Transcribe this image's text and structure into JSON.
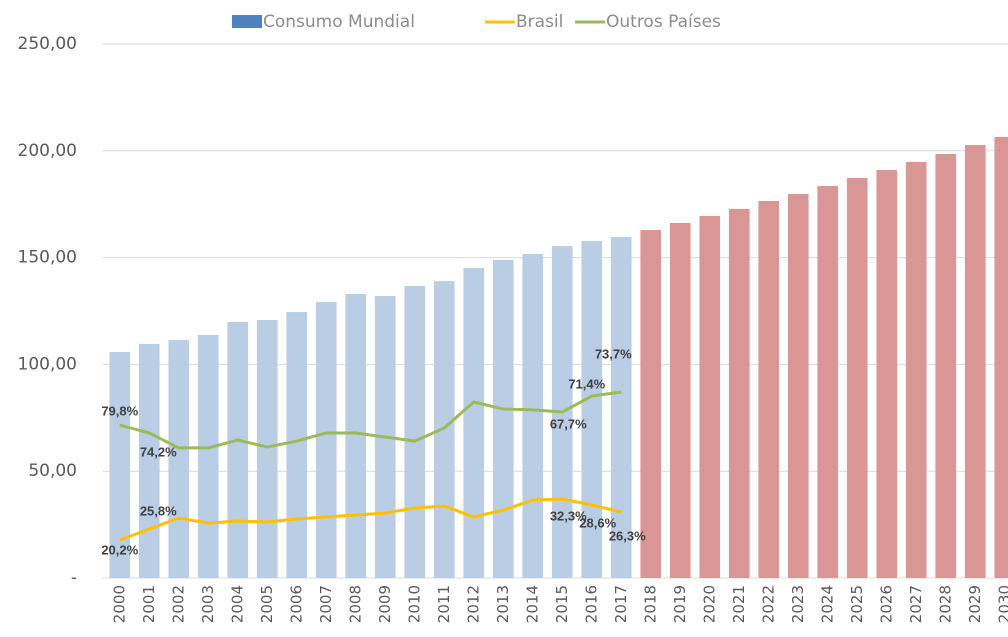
{
  "chart_data": {
    "type": "bar",
    "categories": [
      "2000",
      "2001",
      "2002",
      "2003",
      "2004",
      "2005",
      "2006",
      "2007",
      "2008",
      "2009",
      "2010",
      "2011",
      "2012",
      "2013",
      "2014",
      "2015",
      "2016",
      "2017",
      "2018",
      "2019",
      "2020",
      "2021",
      "2022",
      "2023",
      "2024",
      "2025",
      "2026",
      "2027",
      "2028",
      "2029",
      "2030"
    ],
    "series": [
      {
        "name": "Consumo Mundial",
        "type": "bar",
        "color": "#4f81bd",
        "colors": [
          "#b9cde5",
          "#b9cde5",
          "#b9cde5",
          "#b9cde5",
          "#b9cde5",
          "#b9cde5",
          "#b9cde5",
          "#b9cde5",
          "#b9cde5",
          "#b9cde5",
          "#b9cde5",
          "#b9cde5",
          "#b9cde5",
          "#b9cde5",
          "#b9cde5",
          "#b9cde5",
          "#b9cde5",
          "#b9cde5",
          "#d99694",
          "#d99694",
          "#d99694",
          "#d99694",
          "#d99694",
          "#d99694",
          "#d99694",
          "#d99694",
          "#d99694",
          "#d99694",
          "#d99694",
          "#d99694",
          "#d99694"
        ],
        "values": [
          105.8,
          109.6,
          111.4,
          113.8,
          119.9,
          120.8,
          124.5,
          129.2,
          133.0,
          132.0,
          136.7,
          139.0,
          145.1,
          148.9,
          151.7,
          155.4,
          157.8,
          159.6,
          162.9,
          166.2,
          169.5,
          172.8,
          176.5,
          179.8,
          183.5,
          187.3,
          191.0,
          194.8,
          198.5,
          202.7,
          206.5
        ]
      },
      {
        "name": "Brasil",
        "type": "line",
        "color": "#ffc000",
        "values": [
          17.8,
          22.9,
          28.1,
          25.7,
          26.7,
          26.2,
          27.6,
          28.6,
          29.5,
          30.4,
          32.8,
          33.7,
          28.6,
          31.8,
          36.5,
          37.0,
          34.2,
          30.9,
          null,
          null,
          null,
          null,
          null,
          null,
          null,
          null,
          null,
          null,
          null,
          null,
          null
        ]
      },
      {
        "name": "Outros Países",
        "type": "line",
        "color": "#9bbb59",
        "values": [
          71.6,
          67.9,
          60.9,
          60.9,
          64.6,
          61.3,
          64.1,
          67.9,
          67.9,
          66.0,
          64.1,
          70.2,
          82.4,
          79.1,
          78.7,
          77.7,
          85.2,
          87.1,
          null,
          null,
          null,
          null,
          null,
          null,
          null,
          null,
          null,
          null,
          null,
          null,
          null
        ]
      }
    ],
    "annotations": [
      {
        "text": "79,8%",
        "series": "Outros Países",
        "category": "2000"
      },
      {
        "text": "74,2%",
        "series": "Outros Países",
        "category": "2001"
      },
      {
        "text": "73,7%",
        "series": "Outros Países",
        "category": "2017"
      },
      {
        "text": "71,4%",
        "series": "Outros Países",
        "category": "2016"
      },
      {
        "text": "67,7%",
        "series": "Outros Países",
        "category": "2015"
      },
      {
        "text": "20,2%",
        "series": "Brasil",
        "category": "2000"
      },
      {
        "text": "25,8%",
        "series": "Brasil",
        "category": "2001"
      },
      {
        "text": "32,3%",
        "series": "Brasil",
        "category": "2015"
      },
      {
        "text": "28,6%",
        "series": "Brasil",
        "category": "2016"
      },
      {
        "text": "26,3%",
        "series": "Brasil",
        "category": "2017"
      }
    ],
    "ylim": [
      0,
      250
    ],
    "yticks": [
      {
        "value": 0,
        "label": "-"
      },
      {
        "value": 50,
        "label": "50,00"
      },
      {
        "value": 100,
        "label": "100,00"
      },
      {
        "value": 150,
        "label": "150,00"
      },
      {
        "value": 200,
        "label": "200,00"
      },
      {
        "value": 250,
        "label": "250,00"
      }
    ],
    "grid": true,
    "legend": "top"
  }
}
